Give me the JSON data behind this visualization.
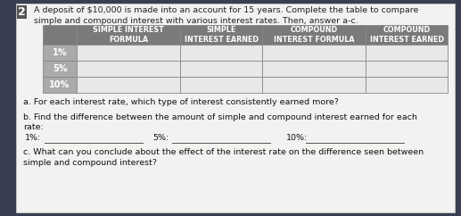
{
  "problem_number": "2",
  "intro_text": "A deposit of $10,000 is made into an account for 15 years. Complete the table to compare\nsimple and compound interest with various interest rates. Then, answer a-c.",
  "col_headers": [
    "SIMPLE INTEREST\nFORMULA",
    "SIMPLE\nINTEREST EARNED",
    "COMPOUND\nINTEREST FORMULA",
    "COMPOUND\nINTEREST EARNED"
  ],
  "row_labels": [
    "1%",
    "5%",
    "10%"
  ],
  "header_bg": "#7a7a7a",
  "header_text_color": "#ffffff",
  "row_label_bg": "#aaaaaa",
  "row_label_text_color": "#ffffff",
  "cell_bg": "#e8e8e8",
  "outer_bg": "#3a3e52",
  "page_bg": "#f2f2f0",
  "border_color": "#888888",
  "question_a": "a. For each interest rate, which type of interest consistently earned more?",
  "question_b1": "b. Find the difference between the amount of simple and compound interest earned for each",
  "question_b2": "rate:",
  "question_b_labels": [
    "1%:",
    "5%:",
    "10%:"
  ],
  "question_c": "c. What can you conclude about the effect of the interest rate on the difference seen between\nsimple and compound interest?",
  "font_size_intro": 6.8,
  "font_size_header": 5.8,
  "font_size_row_label": 7.0,
  "font_size_questions": 6.8,
  "font_size_problem": 9.0
}
